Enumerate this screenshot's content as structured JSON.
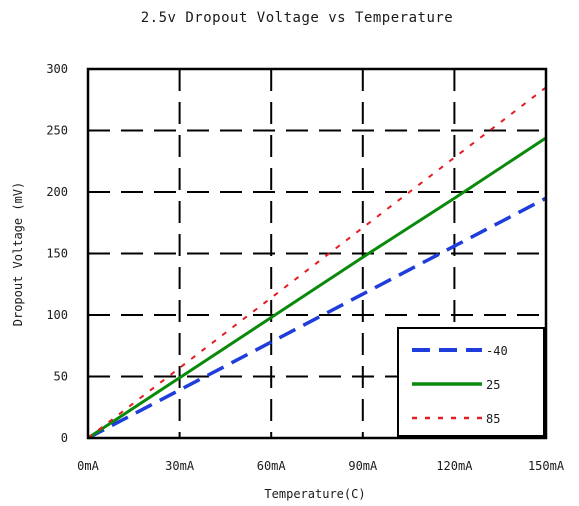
{
  "chart_data": {
    "type": "line",
    "title": "2.5v  Dropout Voltage vs Temperature",
    "xlabel": "Temperature(C)",
    "ylabel": "Dropout Voltage (mV)",
    "categories": [
      "0mA",
      "30mA",
      "60mA",
      "90mA",
      "120mA",
      "150mA"
    ],
    "x": [
      0,
      30,
      60,
      90,
      120,
      150
    ],
    "xlim": [
      0,
      150
    ],
    "ylim": [
      0,
      300
    ],
    "y_ticks": [
      0,
      50,
      100,
      150,
      200,
      250,
      300
    ],
    "x_tick_labels": [
      "0mA",
      "30mA",
      "60mA",
      "90mA",
      "120mA",
      "150mA"
    ],
    "y_tick_labels": [
      "0",
      "50",
      "100",
      "150",
      "200",
      "250",
      "300"
    ],
    "grid": true,
    "legend_position": "bottom-right",
    "series": [
      {
        "name": "-40",
        "values": [
          0,
          39,
          78,
          117,
          156,
          195
        ],
        "color": "#1f3cdc",
        "style": "dashed"
      },
      {
        "name": "25",
        "values": [
          0,
          49,
          98,
          147,
          195,
          244
        ],
        "color": "#0a8a0a",
        "style": "solid"
      },
      {
        "name": "85",
        "values": [
          0,
          57,
          114,
          171,
          228,
          285
        ],
        "color": "#e51c23",
        "style": "dotted"
      }
    ]
  }
}
